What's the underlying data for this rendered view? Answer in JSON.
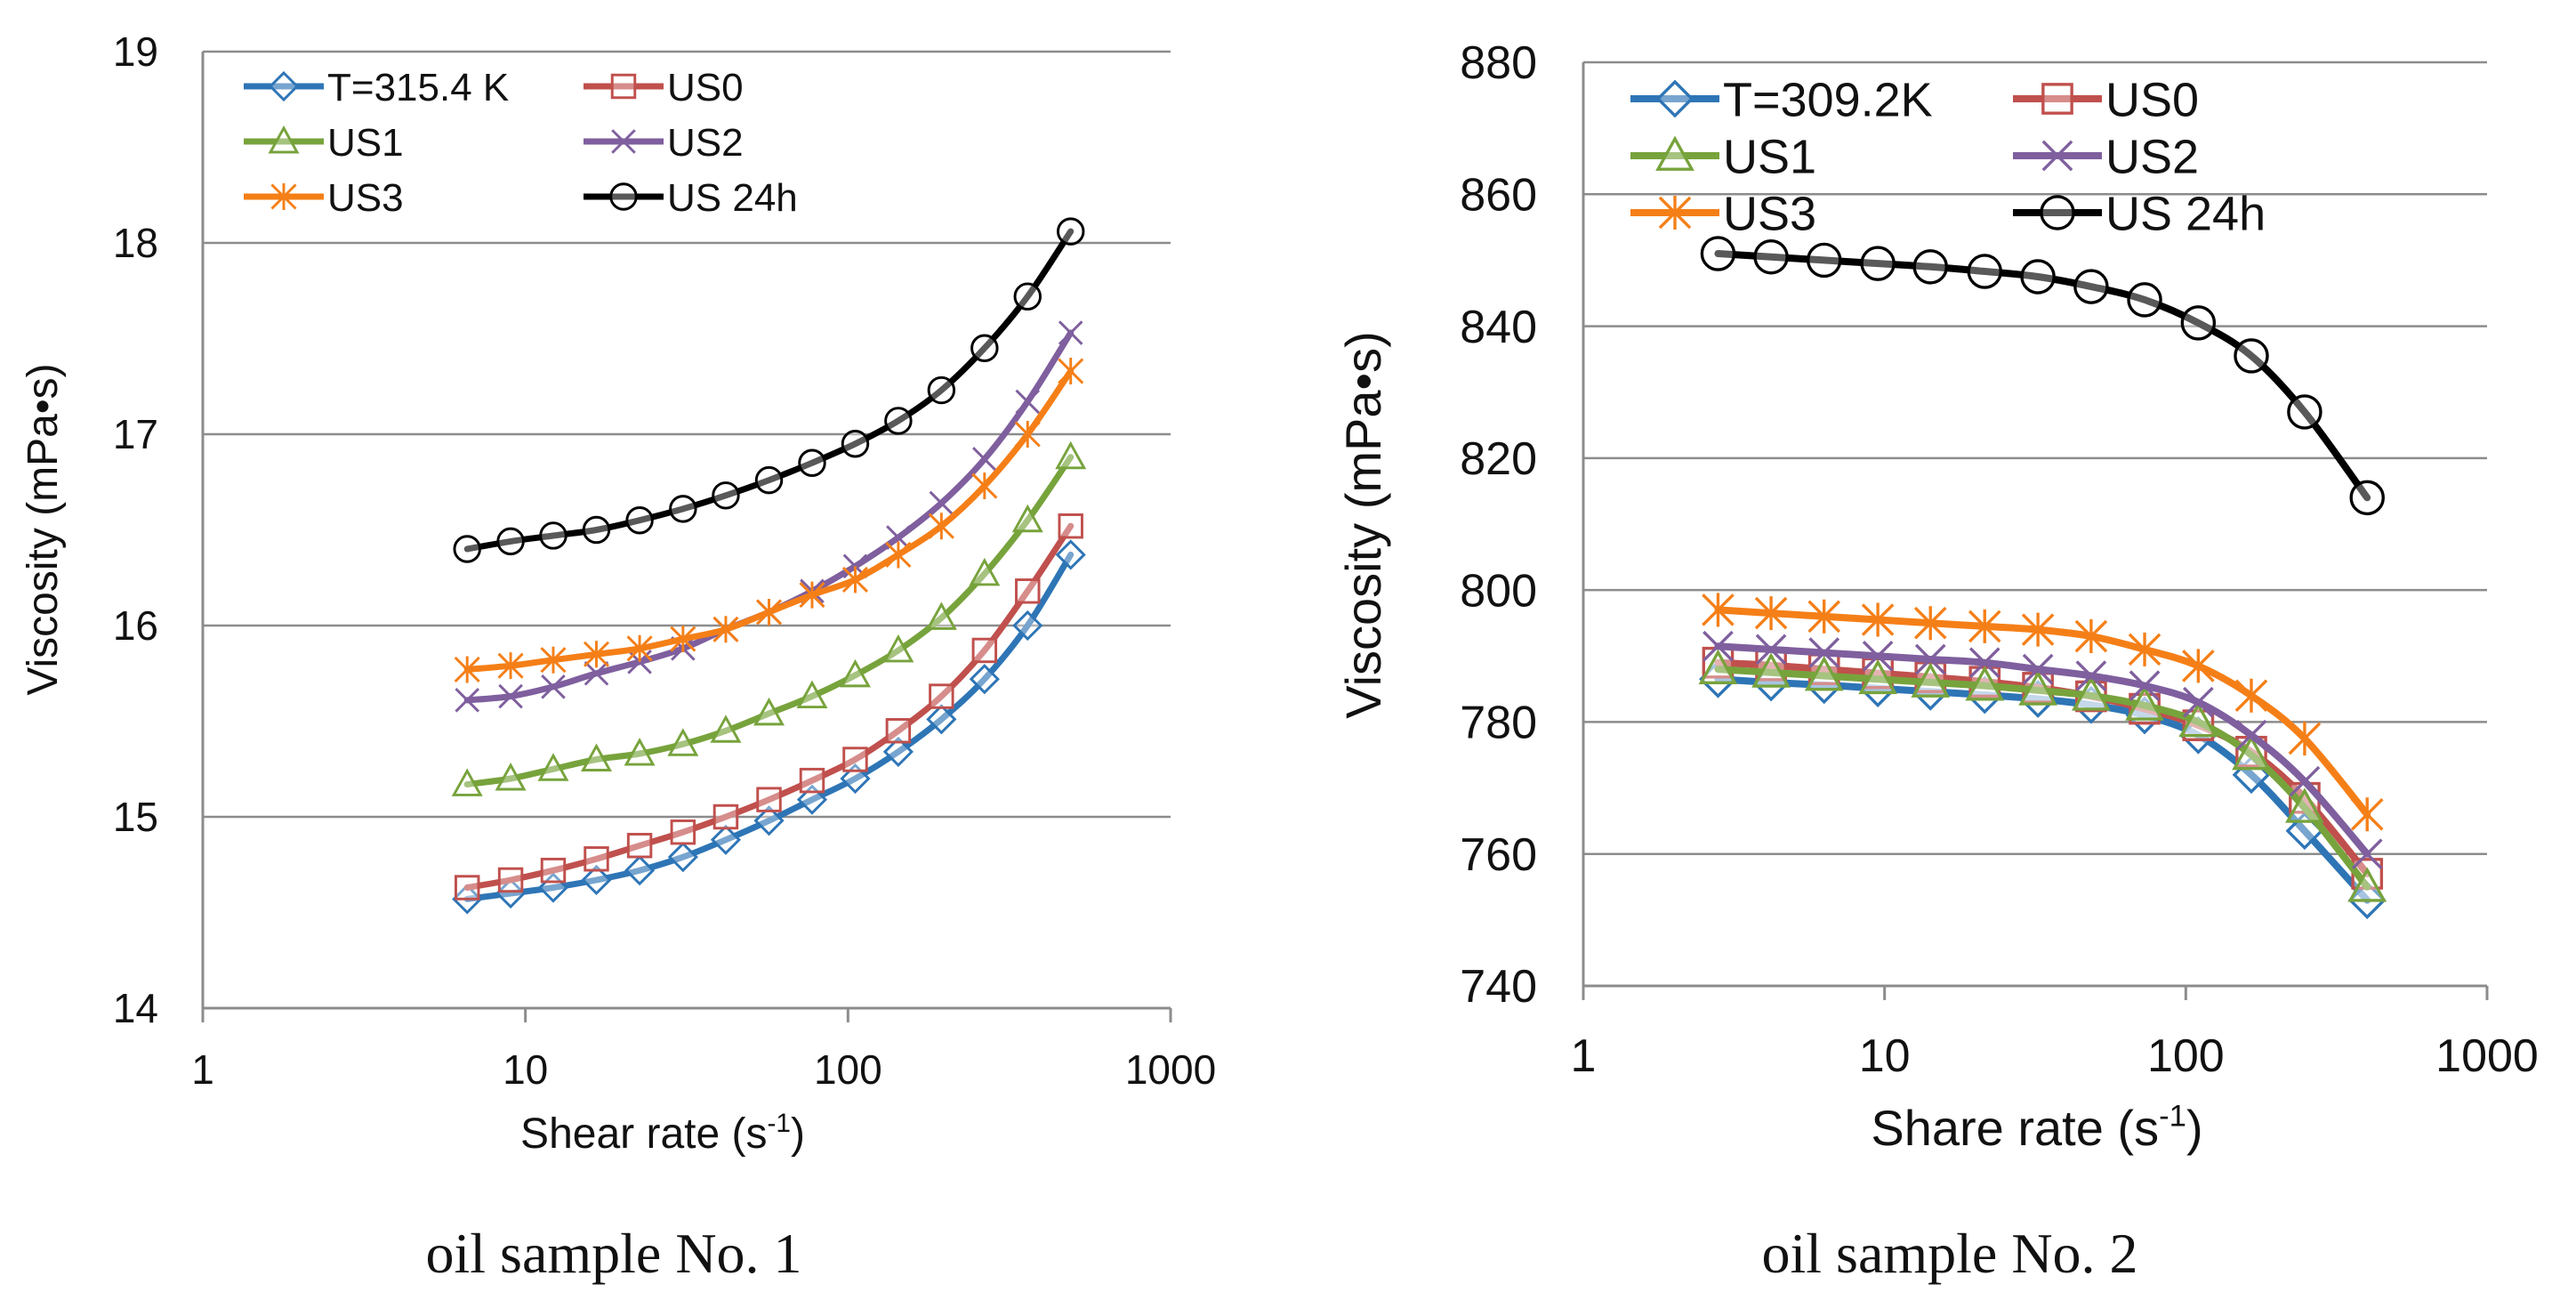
{
  "chart_data": [
    {
      "type": "line",
      "caption": "oil sample No. 1",
      "xlabel_main": "Shear rate (s",
      "xlabel_sup": "-1",
      "xlabel_end": ")",
      "ylabel": "Viscosity (mPa•s)",
      "xscale": "log",
      "xlim": [
        1,
        1000
      ],
      "ylim": [
        14,
        19
      ],
      "xticks": [
        1,
        10,
        100,
        1000
      ],
      "xtick_labels": [
        "1",
        "10",
        "100",
        "1000"
      ],
      "yticks": [
        14,
        15,
        16,
        17,
        18,
        19
      ],
      "ytick_labels": [
        "14",
        "15",
        "16",
        "17",
        "18",
        "19"
      ],
      "grid": "horizontal",
      "legend_position": "top-left",
      "x": [
        6.6,
        9.0,
        12.2,
        16.6,
        22.6,
        30.8,
        41.8,
        56.9,
        77.4,
        105.3,
        143.2,
        194.8,
        265.0,
        360.4,
        490.2
      ],
      "series": [
        {
          "name": "T=315.4 K",
          "color": "#2e75b6",
          "marker": "diamond",
          "values": [
            14.57,
            14.6,
            14.63,
            14.67,
            14.72,
            14.79,
            14.88,
            14.98,
            15.09,
            15.2,
            15.34,
            15.51,
            15.72,
            16.0,
            16.37
          ]
        },
        {
          "name": "US0",
          "color": "#c0504d",
          "marker": "square",
          "values": [
            14.63,
            14.67,
            14.72,
            14.78,
            14.85,
            14.92,
            15.0,
            15.09,
            15.19,
            15.3,
            15.45,
            15.63,
            15.87,
            16.18,
            16.52
          ]
        },
        {
          "name": "US1",
          "color": "#77a33c",
          "marker": "triangle",
          "values": [
            15.17,
            15.2,
            15.25,
            15.3,
            15.33,
            15.38,
            15.45,
            15.54,
            15.63,
            15.74,
            15.87,
            16.04,
            16.27,
            16.55,
            16.88
          ]
        },
        {
          "name": "US2",
          "color": "#7f5f9e",
          "marker": "x",
          "values": [
            15.61,
            15.63,
            15.68,
            15.75,
            15.81,
            15.88,
            15.98,
            16.07,
            16.18,
            16.31,
            16.46,
            16.64,
            16.87,
            17.17,
            17.53
          ]
        },
        {
          "name": "US3",
          "color": "#f57f17",
          "marker": "asterisk",
          "values": [
            15.77,
            15.79,
            15.82,
            15.85,
            15.88,
            15.93,
            15.98,
            16.07,
            16.16,
            16.24,
            16.37,
            16.52,
            16.73,
            17.0,
            17.33
          ]
        },
        {
          "name": "US 24h",
          "color": "#000000",
          "marker": "circle",
          "values": [
            16.4,
            16.44,
            16.47,
            16.5,
            16.55,
            16.61,
            16.68,
            16.76,
            16.85,
            16.95,
            17.07,
            17.23,
            17.45,
            17.72,
            18.06
          ]
        }
      ]
    },
    {
      "type": "line",
      "caption": "oil sample No. 2",
      "xlabel_main": "Share rate (s",
      "xlabel_sup": "-1",
      "xlabel_end": ")",
      "ylabel": "Viscosity (mPa•s)",
      "xscale": "log",
      "xlim": [
        1,
        1000
      ],
      "ylim": [
        740,
        880
      ],
      "xticks": [
        1,
        10,
        100,
        1000
      ],
      "xtick_labels": [
        "1",
        "10",
        "100",
        "1000"
      ],
      "yticks": [
        740,
        760,
        780,
        800,
        820,
        840,
        860,
        880
      ],
      "ytick_labels": [
        "740",
        "760",
        "780",
        "800",
        "820",
        "840",
        "860",
        "880"
      ],
      "grid": "horizontal",
      "legend_position": "top-left",
      "x": [
        2.8,
        4.2,
        6.3,
        9.5,
        14.2,
        21.5,
        32.3,
        48.5,
        73.0,
        110.0,
        165.0,
        248.0,
        400.0
      ],
      "series": [
        {
          "name": "T=309.2K",
          "color": "#2e75b6",
          "marker": "diamond",
          "values": [
            786.5,
            786.0,
            785.6,
            785.1,
            784.6,
            784.1,
            783.5,
            782.6,
            781.0,
            778.0,
            772.0,
            763.5,
            753.0
          ]
        },
        {
          "name": "US0",
          "color": "#c0504d",
          "marker": "square",
          "values": [
            789.0,
            788.6,
            788.0,
            787.4,
            786.8,
            786.1,
            785.2,
            783.9,
            782.0,
            779.5,
            775.5,
            768.5,
            757.0
          ]
        },
        {
          "name": "US1",
          "color": "#77a33c",
          "marker": "triangle",
          "values": [
            788.0,
            787.5,
            787.0,
            786.5,
            786.0,
            785.5,
            784.8,
            784.0,
            782.5,
            780.0,
            775.0,
            767.0,
            755.0
          ]
        },
        {
          "name": "US2",
          "color": "#7f5f9e",
          "marker": "x",
          "values": [
            791.5,
            791.0,
            790.5,
            790.0,
            789.5,
            789.0,
            788.0,
            787.0,
            785.5,
            783.0,
            778.0,
            771.0,
            760.0
          ]
        },
        {
          "name": "US3",
          "color": "#f57f17",
          "marker": "asterisk",
          "values": [
            797.0,
            796.5,
            796.0,
            795.5,
            795.0,
            794.5,
            794.0,
            793.0,
            791.0,
            788.5,
            784.0,
            777.5,
            766.0
          ]
        },
        {
          "name": "US 24h",
          "color": "#000000",
          "marker": "circle",
          "values": [
            851.0,
            850.5,
            850.0,
            849.5,
            849.0,
            848.3,
            847.5,
            846.0,
            844.0,
            840.5,
            835.5,
            827.0,
            814.0
          ]
        }
      ]
    }
  ]
}
